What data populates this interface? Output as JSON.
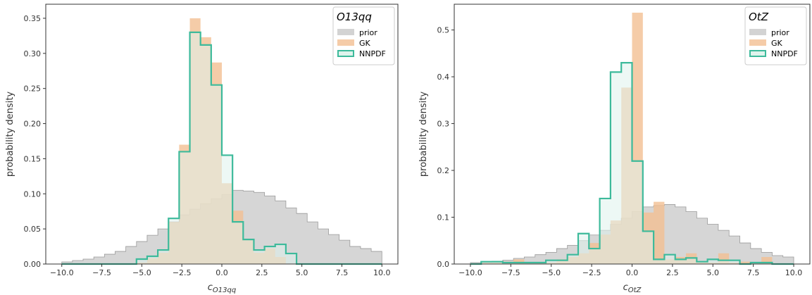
{
  "chart_data": [
    {
      "type": "histogram",
      "legend_title": "O13qq",
      "xlabel_main": "c",
      "xlabel_sub": "O13qq",
      "ylabel": "probability density",
      "xlim": [
        -11,
        11
      ],
      "ylim": [
        0,
        0.37
      ],
      "xticks": [
        -10,
        -7.5,
        -5,
        -2.5,
        0,
        2.5,
        5,
        7.5,
        10
      ],
      "xtick_labels": [
        "−10.0",
        "−7.5",
        "−5.0",
        "−2.5",
        "0.0",
        "2.5",
        "5.0",
        "7.5",
        "10.0"
      ],
      "yticks": [
        0,
        0.05,
        0.1,
        0.15,
        0.2,
        0.25,
        0.3,
        0.35
      ],
      "ytick_labels": [
        "0.00",
        "0.05",
        "0.10",
        "0.15",
        "0.20",
        "0.25",
        "0.30",
        "0.35"
      ],
      "legend_position": "top-right",
      "grid": false,
      "series": [
        {
          "name": "prior",
          "style": "filled",
          "color": "#c8c8c8",
          "edges": [
            -10,
            -9.333,
            -8.667,
            -8,
            -7.333,
            -6.667,
            -6,
            -5.333,
            -4.667,
            -4,
            -3.333,
            -2.667,
            -2,
            -1.333,
            -0.667,
            0,
            0.667,
            1.333,
            2,
            2.667,
            3.333,
            4,
            4.667,
            5.333,
            6,
            6.667,
            7.333,
            8,
            8.667,
            9.333,
            10
          ],
          "values": [
            0.003,
            0.005,
            0.007,
            0.01,
            0.014,
            0.018,
            0.025,
            0.032,
            0.041,
            0.05,
            0.06,
            0.07,
            0.078,
            0.086,
            0.093,
            0.099,
            0.105,
            0.104,
            0.102,
            0.097,
            0.09,
            0.08,
            0.072,
            0.06,
            0.05,
            0.042,
            0.034,
            0.025,
            0.022,
            0.018
          ]
        },
        {
          "name": "GK",
          "style": "filled",
          "color": "#f3bf92",
          "edges": [
            -5.333,
            -4.667,
            -4,
            -3.333,
            -2.667,
            -2,
            -1.333,
            -0.667,
            0,
            0.667,
            1.333,
            2,
            2.667,
            3.333,
            4
          ],
          "values": [
            0.002,
            0.008,
            0.016,
            0.06,
            0.17,
            0.35,
            0.323,
            0.287,
            0.115,
            0.076,
            0.034,
            0.016,
            0.022,
            0.01
          ]
        },
        {
          "name": "NNPDF",
          "style": "step",
          "color": "#3dba9b",
          "fill": "#dff3ec",
          "edges": [
            -10,
            -9.333,
            -8.667,
            -8,
            -7.333,
            -6.667,
            -6,
            -5.333,
            -4.667,
            -4,
            -3.333,
            -2.667,
            -2,
            -1.333,
            -0.667,
            0,
            0.667,
            1.333,
            2,
            2.667,
            3.333,
            4,
            4.667,
            5.333,
            6,
            6.667,
            7.333,
            8,
            8.667,
            9.333,
            10
          ],
          "values": [
            0,
            0,
            0,
            0,
            0,
            0,
            0,
            0.007,
            0.011,
            0.02,
            0.065,
            0.16,
            0.33,
            0.312,
            0.255,
            0.155,
            0.06,
            0.035,
            0.02,
            0.025,
            0.028,
            0.015,
            0,
            0,
            0,
            0,
            0,
            0,
            0,
            0
          ]
        }
      ]
    },
    {
      "type": "histogram",
      "legend_title": "OtZ",
      "xlabel_main": "c",
      "xlabel_sub": "OtZ",
      "ylabel": "probability density",
      "xlim": [
        -11,
        11
      ],
      "ylim": [
        0,
        0.555
      ],
      "xticks": [
        -10,
        -7.5,
        -5,
        -2.5,
        0,
        2.5,
        5,
        7.5,
        10
      ],
      "xtick_labels": [
        "−10.0",
        "−7.5",
        "−5.0",
        "−2.5",
        "0.0",
        "2.5",
        "5.0",
        "7.5",
        "10.0"
      ],
      "yticks": [
        0,
        0.1,
        0.2,
        0.3,
        0.4,
        0.5
      ],
      "ytick_labels": [
        "0.0",
        "0.1",
        "0.2",
        "0.3",
        "0.4",
        "0.5"
      ],
      "legend_position": "top-right",
      "grid": false,
      "series": [
        {
          "name": "prior",
          "style": "filled",
          "color": "#c8c8c8",
          "edges": [
            -10,
            -9.333,
            -8.667,
            -8,
            -7.333,
            -6.667,
            -6,
            -5.333,
            -4.667,
            -4,
            -3.333,
            -2.667,
            -2,
            -1.333,
            -0.667,
            0,
            0.667,
            1.333,
            2,
            2.667,
            3.333,
            4,
            4.667,
            5.333,
            6,
            6.667,
            7.333,
            8,
            8.667,
            9.333,
            10
          ],
          "values": [
            0.003,
            0.004,
            0.006,
            0.008,
            0.012,
            0.015,
            0.02,
            0.025,
            0.033,
            0.04,
            0.05,
            0.062,
            0.072,
            0.085,
            0.098,
            0.112,
            0.122,
            0.125,
            0.127,
            0.122,
            0.112,
            0.098,
            0.085,
            0.072,
            0.06,
            0.045,
            0.033,
            0.025,
            0.018,
            0.015
          ]
        },
        {
          "name": "GK",
          "style": "filled",
          "color": "#f3bf92",
          "edges": [
            -10,
            -9.333,
            -8.667,
            -8,
            -7.333,
            -6.667,
            -6,
            -5.333,
            -4.667,
            -4,
            -3.333,
            -2.667,
            -2,
            -1.333,
            -0.667,
            0,
            0.667,
            1.333,
            2,
            2.667,
            3.333,
            4,
            4.667,
            5.333,
            6,
            6.667,
            7.333,
            8,
            8.667,
            9.333,
            10
          ],
          "values": [
            0,
            0.003,
            0.003,
            0.005,
            0.01,
            0.003,
            0.003,
            0.003,
            0.01,
            0.015,
            0.023,
            0.045,
            0.063,
            0.093,
            0.377,
            0.537,
            0.11,
            0.133,
            0.01,
            0.015,
            0.023,
            0.005,
            0.003,
            0.023,
            0.003,
            0.005,
            0.003,
            0.015,
            0,
            0
          ]
        },
        {
          "name": "NNPDF",
          "style": "step",
          "color": "#3dba9b",
          "fill": "#dff3ec",
          "edges": [
            -10,
            -9.333,
            -8.667,
            -8,
            -7.333,
            -6.667,
            -6,
            -5.333,
            -4.667,
            -4,
            -3.333,
            -2.667,
            -2,
            -1.333,
            -0.667,
            0,
            0.667,
            1.333,
            2,
            2.667,
            3.333,
            4,
            4.667,
            5.333,
            6,
            6.667,
            7.333,
            8,
            8.667,
            9.333,
            10
          ],
          "values": [
            0,
            0.005,
            0.005,
            0.003,
            0.003,
            0.003,
            0.003,
            0.008,
            0.008,
            0.02,
            0.065,
            0.033,
            0.14,
            0.41,
            0.43,
            0.22,
            0.07,
            0.01,
            0.02,
            0.01,
            0.013,
            0.005,
            0.01,
            0.008,
            0.008,
            0,
            0.003,
            0.003,
            0,
            0
          ]
        }
      ]
    }
  ]
}
